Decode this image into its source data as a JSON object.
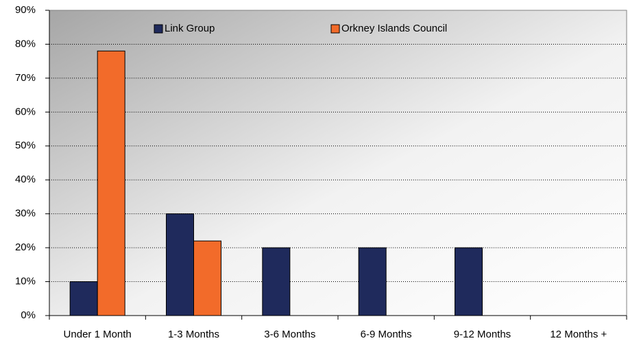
{
  "chart_data": {
    "type": "bar",
    "categories": [
      "Under 1 Month",
      "1-3 Months",
      "3-6 Months",
      "6-9 Months",
      "9-12 Months",
      "12 Months +"
    ],
    "series": [
      {
        "name": "Link Group",
        "color": "#1f2a5c",
        "values": [
          10,
          30,
          20,
          20,
          20,
          0
        ]
      },
      {
        "name": "Orkney Islands Council",
        "color": "#f26b2a",
        "values": [
          78,
          22,
          0,
          0,
          0,
          0
        ]
      }
    ],
    "ylim": [
      0,
      90
    ],
    "yticks": [
      {
        "value": 0,
        "label": "0%"
      },
      {
        "value": 10,
        "label": "10%"
      },
      {
        "value": 20,
        "label": "20%"
      },
      {
        "value": 30,
        "label": "30%"
      },
      {
        "value": 40,
        "label": "40%"
      },
      {
        "value": 50,
        "label": "50%"
      },
      {
        "value": 60,
        "label": "60%"
      },
      {
        "value": 70,
        "label": "70%"
      },
      {
        "value": 80,
        "label": "80%"
      },
      {
        "value": 90,
        "label": "90%"
      }
    ],
    "grid": true,
    "legend": "top"
  }
}
